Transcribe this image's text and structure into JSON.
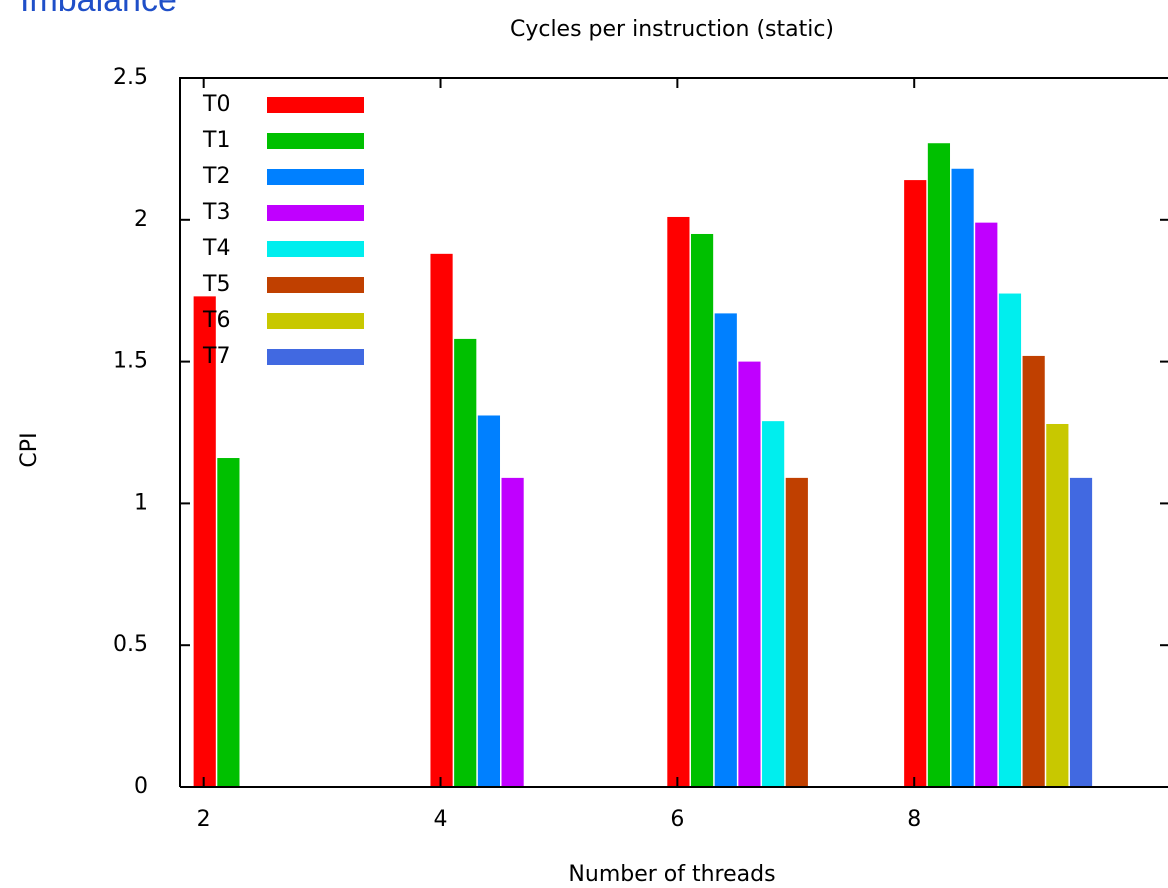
{
  "slide_title": "Imbalance",
  "chart_data": {
    "type": "bar",
    "title": "Cycles per instruction (static)",
    "x_label": "Number of threads",
    "y_label": "CPI",
    "x": [
      2,
      4,
      6,
      8
    ],
    "series": [
      {
        "name": "T0",
        "color": "#ff0000",
        "values": [
          1.73,
          1.88,
          2.01,
          2.14
        ]
      },
      {
        "name": "T1",
        "color": "#00c000",
        "values": [
          1.16,
          1.58,
          1.95,
          2.27
        ]
      },
      {
        "name": "T2",
        "color": "#0080ff",
        "values": [
          null,
          1.31,
          1.67,
          2.18
        ]
      },
      {
        "name": "T3",
        "color": "#c000ff",
        "values": [
          null,
          1.09,
          1.5,
          1.99
        ]
      },
      {
        "name": "T4",
        "color": "#00eeee",
        "values": [
          null,
          null,
          1.29,
          1.74
        ]
      },
      {
        "name": "T5",
        "color": "#c04000",
        "values": [
          null,
          null,
          1.09,
          1.52
        ]
      },
      {
        "name": "T6",
        "color": "#c8c800",
        "values": [
          null,
          null,
          null,
          1.28
        ]
      },
      {
        "name": "T7",
        "color": "#4169e1",
        "values": [
          null,
          null,
          null,
          1.09
        ]
      }
    ],
    "xlim": [
      1.8,
      10.16
    ],
    "xticks": [
      2,
      4,
      6,
      8
    ],
    "ylim": [
      0,
      2.5
    ],
    "yticks": [
      0,
      0.5,
      1,
      1.5,
      2,
      2.5
    ],
    "legend": "top-left"
  }
}
